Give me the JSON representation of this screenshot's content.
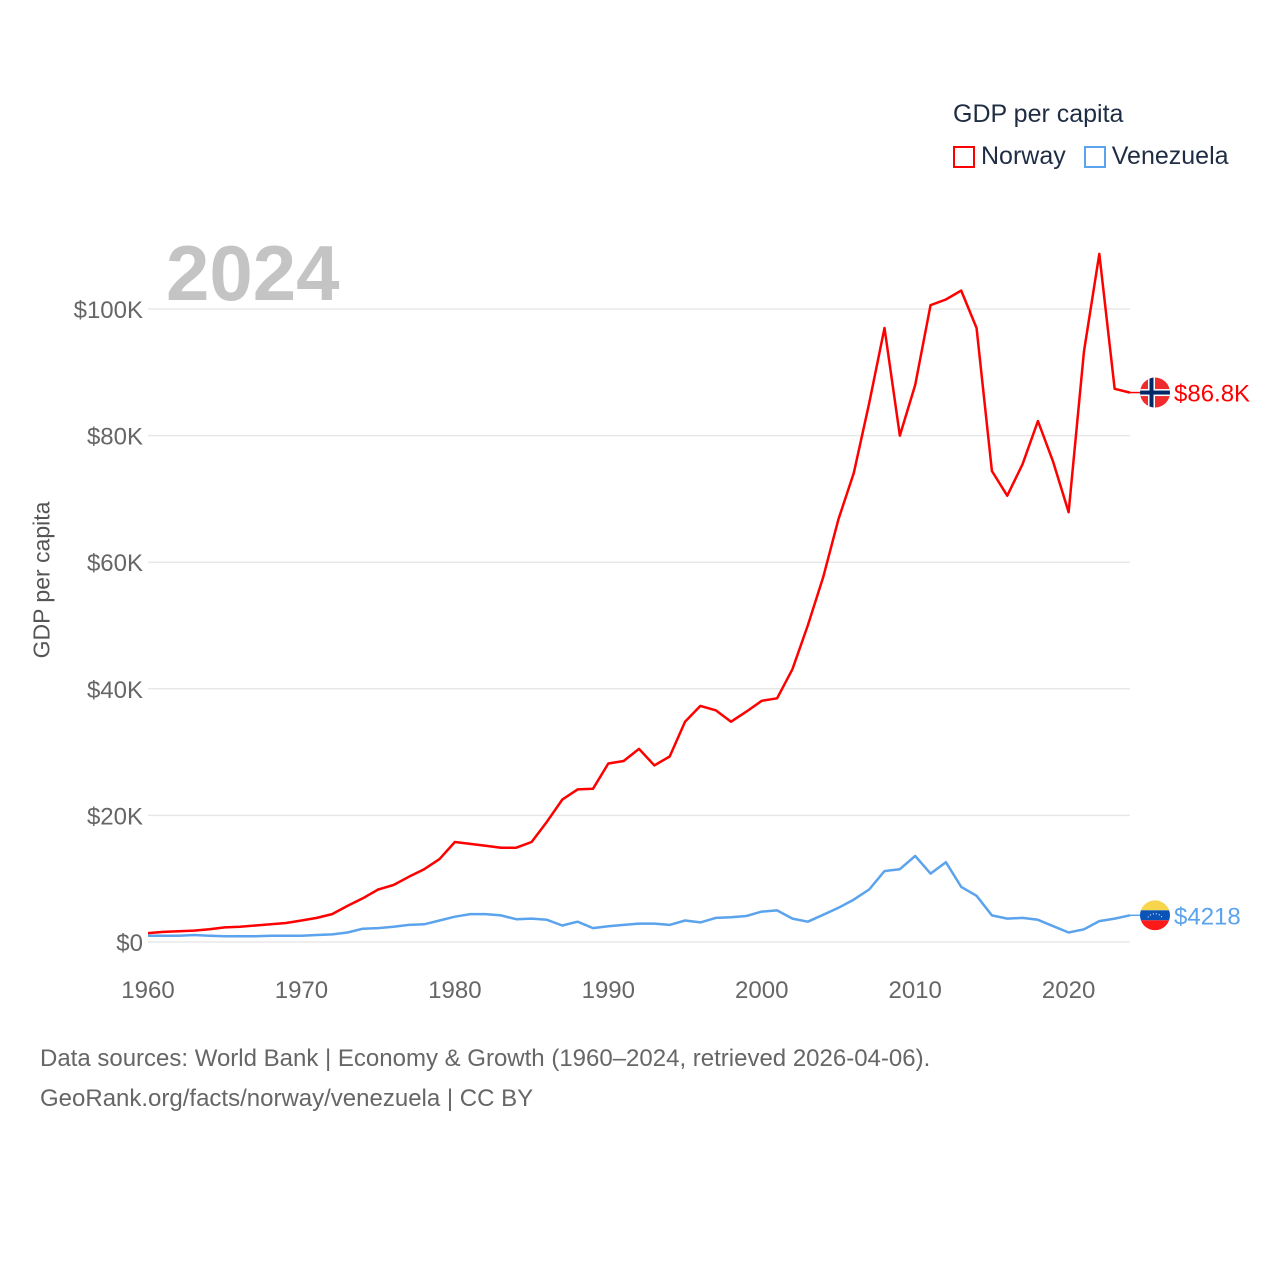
{
  "chart_data": {
    "type": "line",
    "title": "GDP per capita",
    "current_year_label": "2024",
    "xlabel": "",
    "ylabel": "GDP per capita",
    "xlim": [
      1960,
      2024
    ],
    "ylim": [
      0,
      110000
    ],
    "x_ticks": [
      1960,
      1970,
      1980,
      1990,
      2000,
      2010,
      2020
    ],
    "x_tick_labels": [
      "1960",
      "1970",
      "1980",
      "1990",
      "2000",
      "2010",
      "2020"
    ],
    "y_ticks": [
      0,
      20000,
      40000,
      60000,
      80000,
      100000
    ],
    "y_tick_labels": [
      "$0",
      "$20K",
      "$40K",
      "$60K",
      "$80K",
      "$100K"
    ],
    "grid": true,
    "legend_position": "top-right",
    "series": [
      {
        "name": "Norway",
        "color": "#ff0000",
        "end_label": "$86.8K",
        "values": [
          1.4,
          1.6,
          1.7,
          1.8,
          2.0,
          2.3,
          2.4,
          2.6,
          2.8,
          3.0,
          3.4,
          3.8,
          4.4,
          5.7,
          6.9,
          8.3,
          9.0,
          10.3,
          11.5,
          13.1,
          15.8,
          15.5,
          15.2,
          14.9,
          14.9,
          15.8,
          19.0,
          22.5,
          24.1,
          24.2,
          28.2,
          28.6,
          30.5,
          27.9,
          29.3,
          34.8,
          37.3,
          36.6,
          34.8,
          36.4,
          38.1,
          38.5,
          43.1,
          50.0,
          57.6,
          66.8,
          74.1,
          85.1,
          97.0,
          80.0,
          88.0,
          100.6,
          101.5,
          102.9,
          97.0,
          74.4,
          70.5,
          75.5,
          82.3,
          75.8,
          67.9,
          93.3,
          108.7,
          87.4,
          86.8
        ]
      },
      {
        "name": "Venezuela",
        "color": "#5ba3ec",
        "end_label": "$4218",
        "values": [
          1.0,
          1.0,
          1.0,
          1.1,
          1.0,
          0.9,
          0.9,
          0.9,
          1.0,
          1.0,
          1.0,
          1.1,
          1.2,
          1.5,
          2.1,
          2.2,
          2.4,
          2.7,
          2.8,
          3.4,
          4.0,
          4.4,
          4.4,
          4.2,
          3.6,
          3.7,
          3.5,
          2.6,
          3.2,
          2.2,
          2.5,
          2.7,
          2.9,
          2.9,
          2.7,
          3.4,
          3.1,
          3.8,
          3.9,
          4.1,
          4.8,
          5.0,
          3.7,
          3.2,
          4.3,
          5.4,
          6.7,
          8.3,
          11.2,
          11.5,
          13.6,
          10.8,
          12.6,
          8.7,
          7.3,
          4.2,
          3.7,
          3.8,
          3.5,
          2.5,
          1.5,
          2.0,
          3.3,
          3.7,
          4.218
        ]
      }
    ],
    "value_unit": "thousand USD"
  },
  "footer": {
    "line1": "Data sources: World Bank | Economy & Growth (1960–2024, retrieved 2026-04-06).",
    "line2": "GeoRank.org/facts/norway/venezuela | CC BY"
  }
}
